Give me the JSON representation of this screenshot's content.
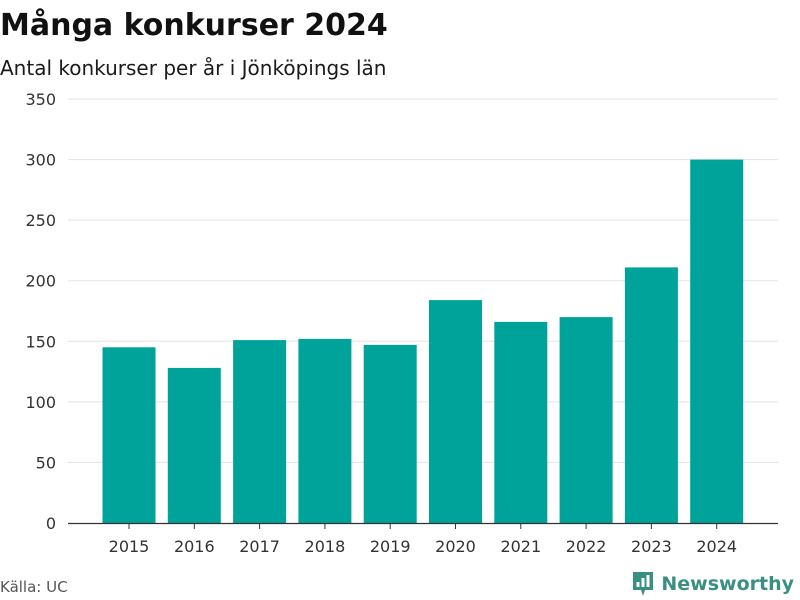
{
  "title": "Många konkurser 2024",
  "subtitle": "Antal konkurser per år i Jönköpings län",
  "source": "Källa: UC",
  "brand": {
    "name": "Newsworthy",
    "icon": "newsworthy-logo-icon",
    "color": "#3a8f83"
  },
  "colors": {
    "bar": "#00a39a",
    "grid": "#e3e3e3",
    "axis": "#333333"
  },
  "chart_data": {
    "type": "bar",
    "title": "Många konkurser 2024",
    "subtitle": "Antal konkurser per år i Jönköpings län",
    "xlabel": "",
    "ylabel": "",
    "categories": [
      "2015",
      "2016",
      "2017",
      "2018",
      "2019",
      "2020",
      "2021",
      "2022",
      "2023",
      "2024"
    ],
    "values": [
      145,
      128,
      151,
      152,
      147,
      184,
      166,
      170,
      211,
      300
    ],
    "ylim": [
      0,
      350
    ],
    "yticks": [
      0,
      50,
      100,
      150,
      200,
      250,
      300,
      350
    ],
    "grid": true,
    "legend": "none"
  }
}
